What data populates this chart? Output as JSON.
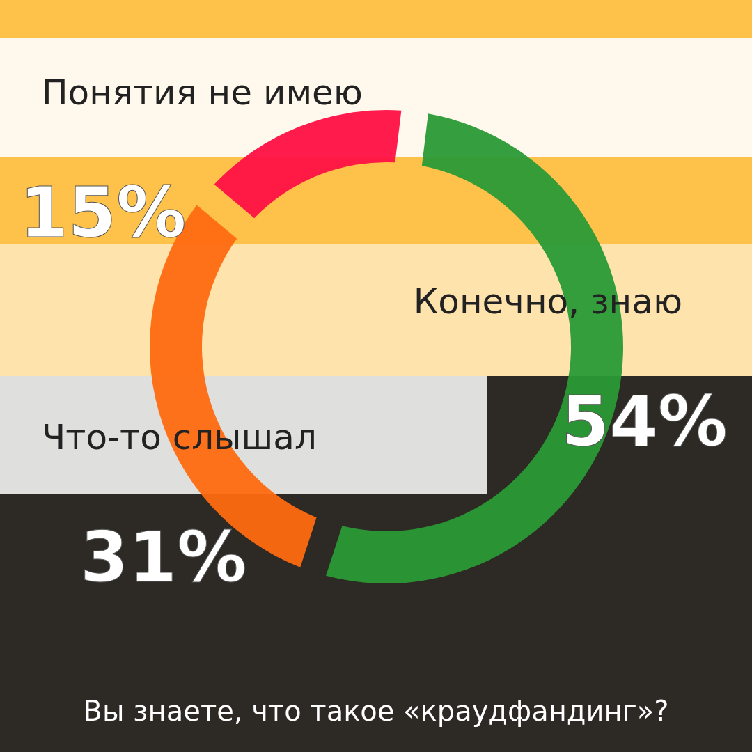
{
  "chart_data": {
    "type": "donut",
    "title": "Вы знаете, что такое «краудфандинг»?",
    "categories": [
      "Конечно, знаю",
      "Что-то слышал",
      "Понятия не имею"
    ],
    "values": [
      54,
      31,
      15
    ],
    "colors": [
      "#2a9a36",
      "#ff6a10",
      "#ff1044"
    ],
    "value_labels": [
      "54%",
      "31%",
      "15%"
    ]
  }
}
